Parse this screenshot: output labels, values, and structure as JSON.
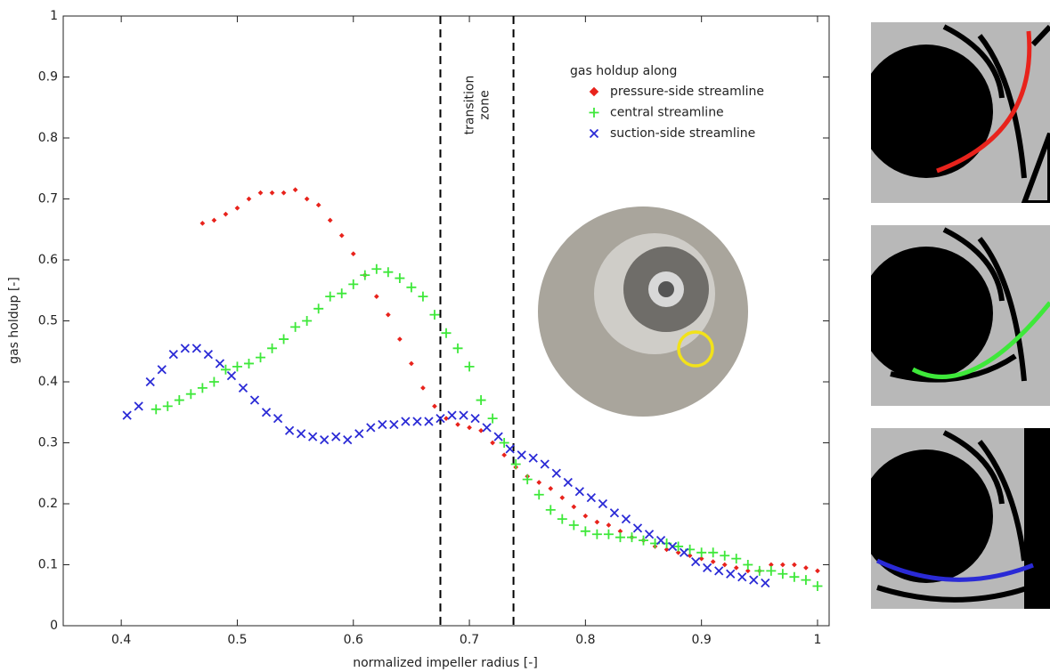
{
  "chart_data": {
    "type": "scatter",
    "xlabel": "normalized impeller radius [-]",
    "ylabel": "gas holdup [-]",
    "xlim": [
      0.35,
      1.01
    ],
    "ylim": [
      0,
      1
    ],
    "xticks": [
      0.4,
      0.5,
      0.6,
      0.7,
      0.8,
      0.9,
      1
    ],
    "yticks": [
      0,
      0.1,
      0.2,
      0.3,
      0.4,
      0.5,
      0.6,
      0.7,
      0.8,
      0.9,
      1
    ],
    "legend_title": "gas holdup along",
    "transition_zone": {
      "label": [
        "transition",
        "zone"
      ],
      "bounds": [
        0.675,
        0.738
      ]
    },
    "series": [
      {
        "name": "pressure-side streamline",
        "color": "#e8231c",
        "marker": "diamond",
        "x": [
          0.47,
          0.48,
          0.49,
          0.5,
          0.51,
          0.52,
          0.53,
          0.54,
          0.55,
          0.56,
          0.57,
          0.58,
          0.59,
          0.6,
          0.61,
          0.62,
          0.63,
          0.64,
          0.65,
          0.66,
          0.67,
          0.68,
          0.69,
          0.7,
          0.71,
          0.72,
          0.73,
          0.74,
          0.75,
          0.76,
          0.77,
          0.78,
          0.79,
          0.8,
          0.81,
          0.82,
          0.83,
          0.84,
          0.85,
          0.86,
          0.87,
          0.88,
          0.89,
          0.9,
          0.91,
          0.92,
          0.93,
          0.94,
          0.95,
          0.96,
          0.97,
          0.98,
          0.99,
          1.0
        ],
        "values": [
          0.66,
          0.665,
          0.675,
          0.685,
          0.7,
          0.71,
          0.71,
          0.71,
          0.715,
          0.7,
          0.69,
          0.665,
          0.64,
          0.61,
          0.575,
          0.54,
          0.51,
          0.47,
          0.43,
          0.39,
          0.36,
          0.34,
          0.33,
          0.325,
          0.32,
          0.3,
          0.28,
          0.26,
          0.245,
          0.235,
          0.225,
          0.21,
          0.195,
          0.18,
          0.17,
          0.165,
          0.155,
          0.145,
          0.14,
          0.13,
          0.125,
          0.12,
          0.115,
          0.11,
          0.105,
          0.1,
          0.095,
          0.09,
          0.09,
          0.1,
          0.1,
          0.1,
          0.095,
          0.09
        ]
      },
      {
        "name": "central streamline",
        "color": "#3ee83a",
        "marker": "plus",
        "x": [
          0.43,
          0.44,
          0.45,
          0.46,
          0.47,
          0.48,
          0.49,
          0.5,
          0.51,
          0.52,
          0.53,
          0.54,
          0.55,
          0.56,
          0.57,
          0.58,
          0.59,
          0.6,
          0.61,
          0.62,
          0.63,
          0.64,
          0.65,
          0.66,
          0.67,
          0.68,
          0.69,
          0.7,
          0.71,
          0.72,
          0.73,
          0.74,
          0.75,
          0.76,
          0.77,
          0.78,
          0.79,
          0.8,
          0.81,
          0.82,
          0.83,
          0.84,
          0.85,
          0.86,
          0.87,
          0.88,
          0.89,
          0.9,
          0.91,
          0.92,
          0.93,
          0.94,
          0.95,
          0.96,
          0.97,
          0.98,
          0.99,
          1.0
        ],
        "values": [
          0.355,
          0.36,
          0.37,
          0.38,
          0.39,
          0.4,
          0.42,
          0.425,
          0.43,
          0.44,
          0.455,
          0.47,
          0.49,
          0.5,
          0.52,
          0.54,
          0.545,
          0.56,
          0.575,
          0.585,
          0.58,
          0.57,
          0.555,
          0.54,
          0.51,
          0.48,
          0.455,
          0.425,
          0.37,
          0.34,
          0.3,
          0.265,
          0.24,
          0.215,
          0.19,
          0.175,
          0.165,
          0.155,
          0.15,
          0.15,
          0.145,
          0.145,
          0.14,
          0.135,
          0.135,
          0.13,
          0.125,
          0.12,
          0.12,
          0.115,
          0.11,
          0.1,
          0.09,
          0.09,
          0.085,
          0.08,
          0.075,
          0.065
        ]
      },
      {
        "name": "suction-side streamline",
        "color": "#2a2ad6",
        "marker": "cross",
        "x": [
          0.405,
          0.415,
          0.425,
          0.435,
          0.445,
          0.455,
          0.465,
          0.475,
          0.485,
          0.495,
          0.505,
          0.515,
          0.525,
          0.535,
          0.545,
          0.555,
          0.565,
          0.575,
          0.585,
          0.595,
          0.605,
          0.615,
          0.625,
          0.635,
          0.645,
          0.655,
          0.665,
          0.675,
          0.685,
          0.695,
          0.705,
          0.715,
          0.725,
          0.735,
          0.745,
          0.755,
          0.765,
          0.775,
          0.785,
          0.795,
          0.805,
          0.815,
          0.825,
          0.835,
          0.845,
          0.855,
          0.865,
          0.875,
          0.885,
          0.895,
          0.905,
          0.915,
          0.925,
          0.935,
          0.945,
          0.955
        ],
        "values": [
          0.345,
          0.36,
          0.4,
          0.42,
          0.445,
          0.455,
          0.455,
          0.445,
          0.43,
          0.41,
          0.39,
          0.37,
          0.35,
          0.34,
          0.32,
          0.315,
          0.31,
          0.305,
          0.31,
          0.305,
          0.315,
          0.325,
          0.33,
          0.33,
          0.335,
          0.335,
          0.335,
          0.34,
          0.345,
          0.345,
          0.34,
          0.325,
          0.31,
          0.29,
          0.28,
          0.275,
          0.265,
          0.25,
          0.235,
          0.22,
          0.21,
          0.2,
          0.185,
          0.175,
          0.16,
          0.15,
          0.14,
          0.13,
          0.12,
          0.105,
          0.095,
          0.09,
          0.085,
          0.08,
          0.075,
          0.07
        ]
      }
    ]
  }
}
